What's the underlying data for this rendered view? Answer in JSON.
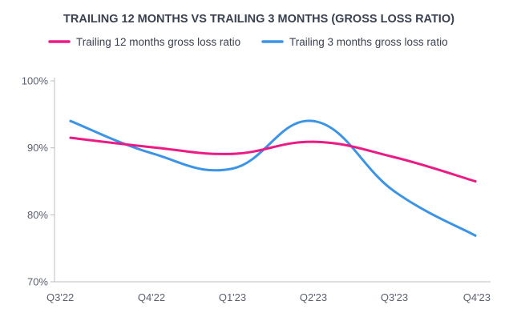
{
  "chart_data": {
    "type": "line",
    "title": "TRAILING 12 MONTHS VS TRAILING 3 MONTHS (GROSS LOSS RATIO)",
    "xlabel": "",
    "ylabel": "",
    "categories": [
      "Q3'22",
      "Q4'22",
      "Q1'23",
      "Q2'23",
      "Q3'23",
      "Q4'23"
    ],
    "ylim": [
      70,
      100
    ],
    "yticks": [
      70,
      80,
      90,
      100
    ],
    "ytick_labels": [
      "70%",
      "80%",
      "90%",
      "100%"
    ],
    "y_unit": "%",
    "grid": "none",
    "legend_position": "top",
    "series": [
      {
        "name": "Trailing 12 months gross loss ratio",
        "color": "#ec1a84",
        "values": [
          91.5,
          90.1,
          89.1,
          90.9,
          88.6,
          85.0
        ]
      },
      {
        "name": "Trailing 3 months gross loss ratio",
        "color": "#3b94e6",
        "values": [
          94.0,
          89.2,
          86.9,
          94.0,
          83.5,
          76.9
        ]
      }
    ]
  }
}
